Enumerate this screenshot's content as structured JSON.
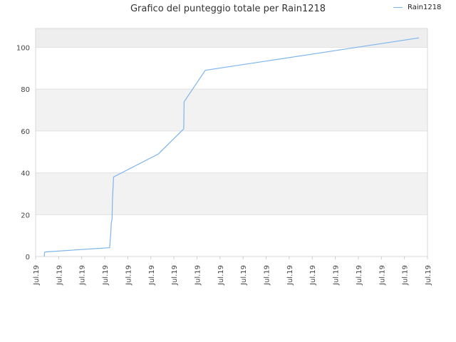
{
  "chart_data": {
    "type": "line",
    "title": "Grafico del punteggio totale per Rain1218",
    "xlabel": "",
    "ylabel": "",
    "x_tick_labels": [
      "Jul.19",
      "Jul.19",
      "Jul.19",
      "Jul.19",
      "Jul.19",
      "Jul.19",
      "Jul.19",
      "Jul.19",
      "Jul.19",
      "Jul.19",
      "Jul.19",
      "Jul.19",
      "Jul.19",
      "Jul.19",
      "Jul.19",
      "Jul.19",
      "Jul.19",
      "Jul.19"
    ],
    "y_ticks": [
      0,
      20,
      40,
      60,
      80,
      100
    ],
    "ylim": [
      0,
      109
    ],
    "xlim": [
      0,
      100
    ],
    "grid": true,
    "legend_position": "top-right",
    "series": [
      {
        "name": "Rain1218",
        "color": "#7cb5ec",
        "x": [
          2.2,
          2.3,
          2.7,
          18.7,
          18.9,
          19.2,
          19.3,
          19.5,
          19.6,
          19.9,
          31.3,
          37.8,
          37.9,
          43.3,
          97.8
        ],
        "y": [
          0,
          2,
          2.2,
          4.2,
          4.2,
          12,
          16,
          18,
          27,
          38,
          49,
          61,
          74,
          89,
          104.5
        ]
      }
    ]
  }
}
